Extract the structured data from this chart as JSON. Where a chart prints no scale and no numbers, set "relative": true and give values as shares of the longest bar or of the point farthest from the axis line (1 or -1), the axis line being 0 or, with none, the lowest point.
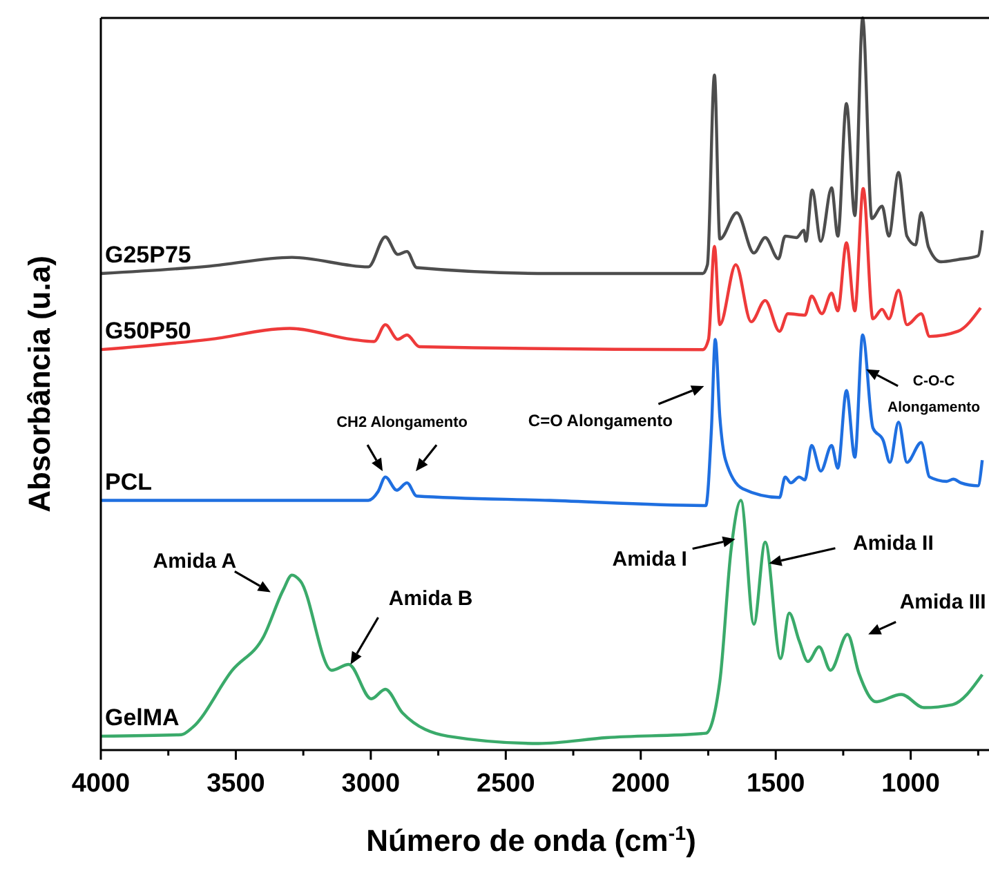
{
  "chart_data": {
    "type": "line",
    "relative": true,
    "xlabel": "Número de onda (cm$^{-1}$)",
    "ylabel": "Absorbância (u.a)",
    "xlim": [
      4000,
      710
    ],
    "xticks": [
      4000,
      {
        "value": 3750,
        "label": null
      },
      3500,
      {
        "value": 3250,
        "label": null
      },
      3000,
      {
        "value": 2750,
        "label": null
      },
      2500,
      {
        "value": 2250,
        "label": null
      },
      2000,
      {
        "value": 1750,
        "label": null
      },
      1500,
      {
        "value": 1250,
        "label": null
      },
      1000,
      {
        "value": 750,
        "label": null
      }
    ],
    "series": [
      {
        "name": "G25P75",
        "color": "#4d4d4d",
        "x": [
          4000,
          3597,
          3292,
          3009,
          2946,
          2900,
          2866,
          2830,
          2337,
          1770,
          1753,
          1727,
          1707,
          1644,
          1581,
          1539,
          1490,
          1465,
          1423,
          1396,
          1388,
          1365,
          1333,
          1293,
          1270,
          1238,
          1207,
          1178,
          1144,
          1106,
          1081,
          1045,
          1014,
          982,
          961,
          934,
          888,
          825,
          751,
          735
        ],
        "values": [
          0.651,
          0.661,
          0.673,
          0.66,
          0.701,
          0.677,
          0.681,
          0.659,
          0.651,
          0.651,
          0.663,
          0.922,
          0.698,
          0.734,
          0.679,
          0.7,
          0.671,
          0.702,
          0.7,
          0.71,
          0.695,
          0.765,
          0.695,
          0.768,
          0.702,
          0.883,
          0.73,
          1.0,
          0.726,
          0.743,
          0.702,
          0.789,
          0.702,
          0.69,
          0.734,
          0.687,
          0.667,
          0.67,
          0.675,
          0.71
        ]
      },
      {
        "name": "G50P50",
        "color": "#ee3a3a",
        "x": [
          4000,
          3597,
          3300,
          3070,
          2988,
          2946,
          2900,
          2866,
          2820,
          1770,
          1749,
          1727,
          1707,
          1648,
          1591,
          1539,
          1486,
          1455,
          1392,
          1367,
          1329,
          1293,
          1270,
          1238,
          1207,
          1176,
          1140,
          1106,
          1081,
          1045,
          1014,
          961,
          930,
          825,
          741
        ],
        "values": [
          0.547,
          0.561,
          0.576,
          0.561,
          0.558,
          0.581,
          0.561,
          0.567,
          0.551,
          0.547,
          0.561,
          0.688,
          0.581,
          0.663,
          0.585,
          0.614,
          0.572,
          0.596,
          0.594,
          0.62,
          0.596,
          0.624,
          0.6,
          0.693,
          0.6,
          0.767,
          0.589,
          0.602,
          0.589,
          0.628,
          0.581,
          0.596,
          0.565,
          0.572,
          0.604
        ]
      },
      {
        "name": "PCL",
        "color": "#1f6fe0",
        "x": [
          4000,
          3009,
          2973,
          2946,
          2904,
          2866,
          2830,
          2337,
          1759,
          1738,
          1724,
          1707,
          1686,
          1623,
          1486,
          1465,
          1444,
          1413,
          1392,
          1367,
          1333,
          1293,
          1270,
          1238,
          1207,
          1178,
          1140,
          1102,
          1077,
          1045,
          1014,
          961,
          930,
          867,
          842,
          814,
          751,
          735
        ],
        "values": [
          0.341,
          0.341,
          0.353,
          0.373,
          0.355,
          0.365,
          0.347,
          0.341,
          0.334,
          0.44,
          0.561,
          0.455,
          0.396,
          0.357,
          0.345,
          0.373,
          0.365,
          0.373,
          0.369,
          0.416,
          0.381,
          0.416,
          0.385,
          0.491,
          0.4,
          0.567,
          0.44,
          0.423,
          0.393,
          0.448,
          0.393,
          0.42,
          0.373,
          0.367,
          0.37,
          0.365,
          0.361,
          0.396
        ]
      },
      {
        "name": "GelMA",
        "color": "#3aaa6a",
        "x": [
          4000,
          3702,
          3660,
          3513,
          3397,
          3324,
          3292,
          3261,
          3145,
          3082,
          2998,
          2946,
          2883,
          2715,
          2379,
          2127,
          1759,
          1707,
          1665,
          1629,
          1581,
          1539,
          1482,
          1450,
          1413,
          1381,
          1339,
          1297,
          1234,
          1192,
          1129,
          1035,
          951,
          846,
          735
        ],
        "values": [
          0.019,
          0.021,
          0.031,
          0.109,
          0.155,
          0.219,
          0.239,
          0.231,
          0.109,
          0.117,
          0.07,
          0.083,
          0.051,
          0.019,
          0.009,
          0.017,
          0.023,
          0.094,
          0.275,
          0.341,
          0.172,
          0.284,
          0.125,
          0.187,
          0.149,
          0.121,
          0.141,
          0.109,
          0.158,
          0.105,
          0.066,
          0.076,
          0.058,
          0.062,
          0.103
        ]
      }
    ],
    "annotations": [
      {
        "text": "CH2 Alongamento",
        "x": 2956,
        "y": 0.381
      },
      {
        "text": "C=O Alongamento",
        "x": 1740,
        "y": 0.45
      },
      {
        "text": "C-O-C Alongamento",
        "x": 1165,
        "y": 0.52
      },
      {
        "text": "Amida A",
        "x": 3330,
        "y": 0.21
      },
      {
        "text": "Amida B",
        "x": 3075,
        "y": 0.117
      },
      {
        "text": "Amida I",
        "x": 1665,
        "y": 0.275
      },
      {
        "text": "Amida II",
        "x": 1525,
        "y": 0.255
      },
      {
        "text": "Amida III",
        "x": 1234,
        "y": 0.158
      }
    ]
  }
}
